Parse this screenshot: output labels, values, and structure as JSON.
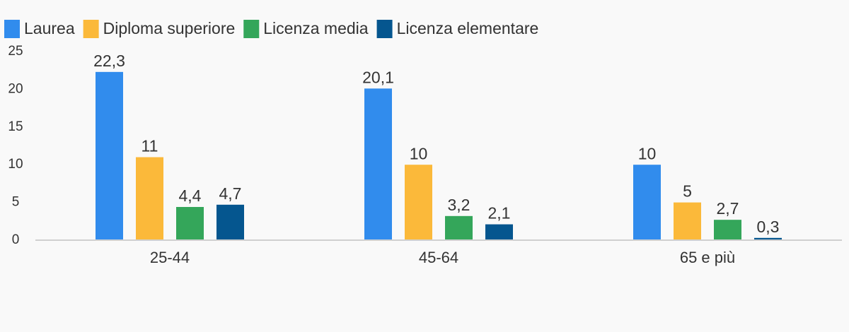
{
  "chart_data": {
    "type": "bar",
    "categories": [
      "25-44",
      "45-64",
      "65 e più"
    ],
    "series": [
      {
        "name": "Laurea",
        "color": "#318ced",
        "values": [
          22.3,
          20.1,
          10
        ],
        "value_labels": [
          "22,3",
          "20,1",
          "10"
        ]
      },
      {
        "name": "Diploma superiore",
        "color": "#fbb93a",
        "values": [
          11,
          10,
          5
        ],
        "value_labels": [
          "11",
          "10",
          "5"
        ]
      },
      {
        "name": "Licenza media",
        "color": "#34a65a",
        "values": [
          4.4,
          3.2,
          2.7
        ],
        "value_labels": [
          "4,4",
          "3,2",
          "2,7"
        ]
      },
      {
        "name": "Licenza elementare",
        "color": "#05568f",
        "values": [
          4.7,
          2.1,
          0.3
        ],
        "value_labels": [
          "4,7",
          "2,1",
          "0,3"
        ]
      }
    ],
    "ylim": [
      0,
      25
    ],
    "yticks": [
      0,
      5,
      10,
      15,
      20,
      25
    ],
    "grid": false,
    "legend": "top"
  }
}
